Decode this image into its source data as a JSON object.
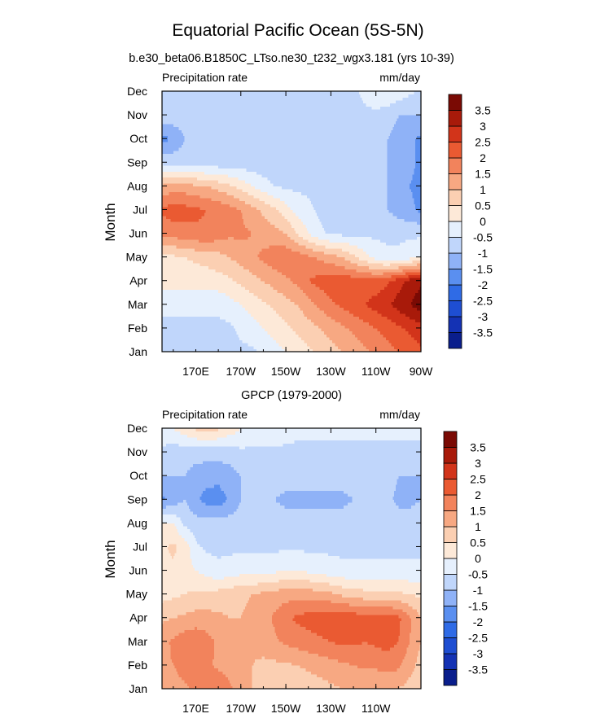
{
  "figure": {
    "title": "Equatorial Pacific Ocean (5S-5N)",
    "ylabel": "Month",
    "months": [
      "Jan",
      "Feb",
      "Mar",
      "Apr",
      "May",
      "Jun",
      "Jul",
      "Aug",
      "Sep",
      "Oct",
      "Nov",
      "Dec"
    ]
  },
  "colorbar": {
    "levels": [
      -3.5,
      -3,
      -2.5,
      -2,
      -1.5,
      -1,
      -0.5,
      0,
      0.5,
      1,
      1.5,
      2,
      2.5,
      3,
      3.5
    ],
    "labels": [
      "-3.5",
      "-3",
      "-2.5",
      "-2",
      "-1.5",
      "-1",
      "-0.5",
      "0",
      "0.5",
      "1",
      "1.5",
      "2",
      "2.5",
      "3",
      "3.5"
    ],
    "colors": [
      "#0a1e8c",
      "#1432b4",
      "#1e4ed2",
      "#2f6be6",
      "#5a8ff0",
      "#8fb2f7",
      "#c0d6fb",
      "#e6f0fd",
      "#fde9d8",
      "#fbcfb2",
      "#f7a882",
      "#f2835c",
      "#ea5a32",
      "#d2341a",
      "#a81a0a",
      "#7a0a04"
    ]
  },
  "chart_data": [
    {
      "type": "heatmap",
      "id": "model",
      "title": "b.e30_beta06.B1850C_LTso.ne30_t232_wgx3.181 (yrs 10-39)",
      "left_label": "Precipitation rate",
      "right_label": "mm/day",
      "xlabel": "",
      "ylabel": "Month",
      "xlim": [
        155,
        270
      ],
      "x_tick_values": [
        190,
        210,
        230,
        250,
        270
      ],
      "x_tick_labels": [
        "170E",
        "170W",
        "150W",
        "130W",
        "110W",
        "90W"
      ],
      "x_tick_labels_pos": [
        170,
        190,
        210,
        230,
        250,
        270
      ],
      "y_categories": [
        "Jan",
        "Feb",
        "Mar",
        "Apr",
        "May",
        "Jun",
        "Jul",
        "Aug",
        "Sep",
        "Oct",
        "Nov",
        "Dec"
      ],
      "lon": [
        155,
        160,
        165,
        170,
        175,
        180,
        185,
        190,
        195,
        200,
        205,
        210,
        215,
        220,
        225,
        230,
        235,
        240,
        245,
        250,
        255,
        260,
        265,
        270
      ],
      "rows": [
        [
          -0.6,
          -0.6,
          -0.6,
          -0.6,
          -0.6,
          -0.6,
          -0.6,
          -0.6,
          -0.6,
          -0.4,
          -0.2,
          0.0,
          0.2,
          0.4,
          0.6,
          0.8,
          1.0,
          1.2,
          1.4,
          1.6,
          1.8,
          2.0,
          2.2,
          2.4
        ],
        [
          -0.6,
          -0.6,
          -0.6,
          -0.6,
          -0.6,
          -0.6,
          -0.6,
          -0.4,
          -0.2,
          0.0,
          0.2,
          0.4,
          0.6,
          0.8,
          1.0,
          1.2,
          1.4,
          1.6,
          1.8,
          2.0,
          2.2,
          2.4,
          2.6,
          2.8
        ],
        [
          -0.4,
          -0.4,
          -0.4,
          -0.4,
          -0.4,
          -0.4,
          -0.2,
          0.0,
          0.2,
          0.4,
          0.6,
          0.8,
          1.0,
          1.3,
          1.6,
          1.9,
          2.1,
          2.3,
          2.5,
          2.7,
          2.9,
          3.2,
          3.5,
          3.8
        ],
        [
          0.2,
          0.2,
          0.2,
          0.2,
          0.2,
          0.3,
          0.4,
          0.6,
          0.8,
          1.0,
          1.2,
          1.4,
          1.6,
          2.0,
          2.2,
          2.3,
          2.3,
          2.3,
          2.2,
          2.2,
          2.4,
          2.8,
          3.2,
          3.4
        ],
        [
          0.3,
          0.4,
          0.5,
          0.6,
          0.7,
          0.8,
          1.0,
          1.2,
          1.4,
          1.6,
          1.8,
          1.9,
          1.8,
          1.6,
          1.4,
          1.2,
          1.0,
          0.6,
          0.2,
          -0.2,
          -0.4,
          -0.4,
          -0.2,
          0.0
        ],
        [
          1.6,
          1.7,
          1.8,
          1.9,
          1.9,
          1.8,
          1.6,
          1.6,
          1.5,
          1.3,
          1.2,
          1.0,
          0.5,
          0.0,
          -0.4,
          -0.6,
          -0.6,
          -0.6,
          -0.6,
          -0.6,
          -0.6,
          -0.6,
          -0.6,
          -0.6
        ],
        [
          2.1,
          2.3,
          2.2,
          2.1,
          2.0,
          1.9,
          1.7,
          1.5,
          1.2,
          0.9,
          0.6,
          0.2,
          -0.2,
          -0.4,
          -0.6,
          -0.6,
          -0.6,
          -0.6,
          -0.6,
          -0.8,
          -1.0,
          -1.2,
          -1.4,
          -1.6
        ],
        [
          1.1,
          1.2,
          1.2,
          1.1,
          1.0,
          0.8,
          0.6,
          0.3,
          0.0,
          -0.3,
          -0.5,
          -0.6,
          -0.6,
          -0.6,
          -0.6,
          -0.6,
          -0.6,
          -0.6,
          -0.6,
          -0.8,
          -1.0,
          -1.3,
          -1.5,
          -1.6
        ],
        [
          -0.6,
          -0.7,
          -0.8,
          -0.8,
          -0.8,
          -0.8,
          -0.8,
          -0.8,
          -0.8,
          -0.8,
          -0.8,
          -0.8,
          -0.8,
          -0.8,
          -0.6,
          -0.6,
          -0.6,
          -0.6,
          -0.6,
          -0.8,
          -1.0,
          -1.2,
          -1.4,
          -1.6
        ],
        [
          -1.7,
          -1.4,
          -1.0,
          -1.0,
          -1.0,
          -1.0,
          -1.0,
          -1.0,
          -1.0,
          -1.0,
          -1.0,
          -1.0,
          -1.0,
          -1.0,
          -0.8,
          -0.6,
          -0.6,
          -0.6,
          -0.6,
          -0.8,
          -1.0,
          -1.2,
          -1.4,
          -1.6
        ],
        [
          -0.6,
          -0.7,
          -0.8,
          -0.8,
          -0.8,
          -0.8,
          -0.8,
          -1.0,
          -1.0,
          -1.0,
          -1.0,
          -1.0,
          -1.0,
          -1.0,
          -0.8,
          -0.6,
          -0.6,
          -0.6,
          -0.6,
          -0.6,
          -0.8,
          -1.0,
          -1.0,
          -1.0
        ],
        [
          -0.6,
          -0.6,
          -0.6,
          -0.6,
          -0.6,
          -0.6,
          -0.6,
          -0.6,
          -0.6,
          -0.6,
          -0.6,
          -0.6,
          -0.6,
          -0.6,
          -0.6,
          -0.6,
          -0.6,
          -0.6,
          -0.4,
          -0.2,
          0.0,
          -0.2,
          -0.4,
          -0.6
        ]
      ]
    },
    {
      "type": "heatmap",
      "id": "obs",
      "title": "GPCP (1979-2000)",
      "left_label": "Precipitation rate",
      "right_label": "mm/day",
      "xlabel": "",
      "ylabel": "Month",
      "xlim": [
        155,
        270
      ],
      "x_tick_values": [
        190,
        210,
        230,
        250
      ],
      "x_tick_labels": [
        "170E",
        "170W",
        "150W",
        "130W",
        "110W"
      ],
      "x_tick_labels_pos": [
        170,
        190,
        210,
        230,
        250
      ],
      "y_categories": [
        "Jan",
        "Feb",
        "Mar",
        "Apr",
        "May",
        "Jun",
        "Jul",
        "Aug",
        "Sep",
        "Oct",
        "Nov",
        "Dec"
      ],
      "lon": [
        155,
        160,
        165,
        170,
        175,
        180,
        185,
        190,
        195,
        200,
        205,
        210,
        215,
        220,
        225,
        230,
        235,
        240,
        245,
        250,
        255,
        260,
        265,
        270
      ],
      "rows": [
        [
          1.2,
          1.3,
          1.4,
          1.6,
          1.8,
          1.9,
          1.6,
          1.2,
          1.0,
          0.9,
          0.8,
          0.7,
          0.7,
          0.7,
          0.8,
          0.9,
          1.0,
          1.0,
          1.0,
          1.0,
          1.0,
          1.0,
          0.8,
          0.6
        ],
        [
          1.4,
          1.5,
          1.7,
          1.8,
          1.6,
          1.4,
          1.3,
          1.1,
          1.0,
          0.9,
          0.9,
          0.9,
          1.0,
          1.1,
          1.2,
          1.3,
          1.4,
          1.5,
          1.6,
          1.6,
          1.7,
          1.6,
          1.2,
          0.8
        ],
        [
          1.3,
          1.6,
          1.8,
          1.9,
          1.7,
          1.4,
          1.2,
          1.1,
          1.1,
          1.2,
          1.4,
          1.6,
          1.7,
          1.8,
          1.9,
          2.0,
          2.1,
          2.1,
          2.0,
          2.1,
          2.2,
          2.0,
          1.5,
          1.0
        ],
        [
          0.9,
          1.0,
          1.1,
          1.2,
          1.2,
          1.1,
          1.0,
          1.0,
          1.1,
          1.3,
          1.6,
          1.9,
          2.1,
          2.2,
          2.3,
          2.4,
          2.4,
          2.3,
          2.2,
          2.2,
          2.3,
          2.1,
          1.6,
          1.0
        ],
        [
          0.3,
          0.4,
          0.5,
          0.6,
          0.6,
          0.7,
          0.8,
          0.9,
          1.0,
          1.1,
          1.2,
          1.3,
          1.3,
          1.3,
          1.2,
          1.1,
          0.9,
          0.8,
          0.7,
          0.6,
          0.6,
          0.6,
          0.5,
          0.4
        ],
        [
          0.2,
          0.4,
          0.2,
          0.0,
          -0.2,
          -0.4,
          -0.3,
          -0.2,
          -0.2,
          -0.2,
          -0.1,
          0.0,
          0.0,
          -0.1,
          -0.2,
          -0.3,
          -0.4,
          -0.4,
          -0.4,
          -0.4,
          -0.4,
          -0.4,
          -0.4,
          -0.4
        ],
        [
          0.4,
          0.6,
          0.3,
          -0.4,
          -0.6,
          -0.6,
          -0.6,
          -0.6,
          -0.6,
          -0.6,
          -0.6,
          -0.6,
          -0.6,
          -0.6,
          -0.6,
          -0.6,
          -0.6,
          -0.6,
          -0.6,
          -0.6,
          -0.6,
          -0.6,
          -0.6,
          -0.6
        ],
        [
          0.1,
          0.0,
          -0.6,
          -0.8,
          -0.8,
          -0.8,
          -0.8,
          -0.8,
          -0.8,
          -0.8,
          -0.8,
          -0.8,
          -0.8,
          -0.8,
          -0.8,
          -0.8,
          -0.8,
          -0.8,
          -0.8,
          -0.8,
          -0.8,
          -0.8,
          -0.8,
          -0.8
        ],
        [
          -1.6,
          -1.3,
          -1.0,
          -1.4,
          -1.7,
          -1.8,
          -1.4,
          -1.0,
          -0.8,
          -0.8,
          -1.0,
          -1.1,
          -1.1,
          -1.1,
          -1.1,
          -1.1,
          -1.1,
          -1.0,
          -0.8,
          -0.8,
          -0.9,
          -1.1,
          -1.1,
          -1.0
        ],
        [
          -1.0,
          -1.0,
          -1.0,
          -1.2,
          -1.3,
          -1.3,
          -1.2,
          -1.0,
          -0.8,
          -0.8,
          -0.8,
          -0.8,
          -0.8,
          -0.8,
          -0.8,
          -0.8,
          -0.8,
          -0.8,
          -0.8,
          -0.8,
          -0.8,
          -1.0,
          -1.0,
          -1.0
        ],
        [
          -0.6,
          -0.8,
          -0.8,
          -0.8,
          -0.8,
          -0.8,
          -0.8,
          -0.6,
          -0.6,
          -0.6,
          -0.6,
          -0.6,
          -0.6,
          -0.6,
          -0.6,
          -0.6,
          -0.6,
          -0.6,
          -0.6,
          -0.6,
          -0.6,
          -0.6,
          -0.6,
          -0.6
        ],
        [
          -0.2,
          0.0,
          0.3,
          0.6,
          0.8,
          0.6,
          0.3,
          0.0,
          -0.2,
          -0.2,
          -0.2,
          -0.3,
          -0.4,
          -0.4,
          -0.4,
          -0.4,
          -0.4,
          -0.4,
          -0.4,
          -0.4,
          -0.4,
          -0.4,
          -0.4,
          -0.4
        ]
      ]
    }
  ]
}
